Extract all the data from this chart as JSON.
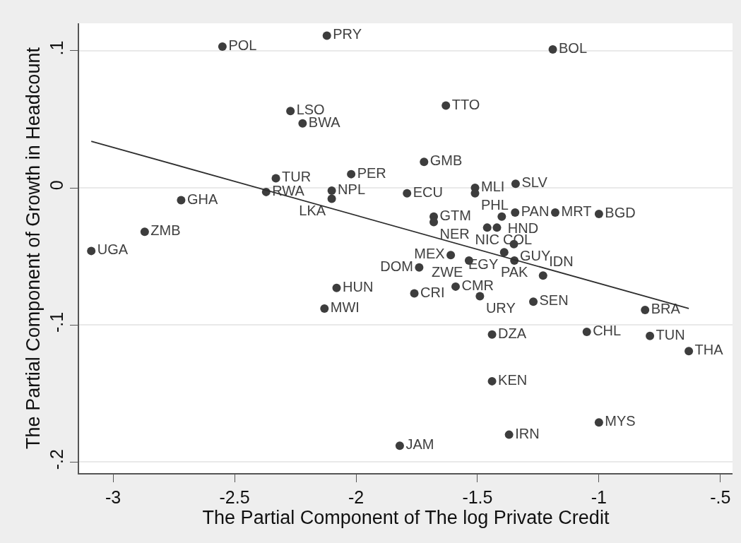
{
  "chart_data": {
    "type": "scatter",
    "xlabel": "The Partial Component of The log Private Credit",
    "ylabel": "The Partial Component of Growth in Headcount",
    "xlim": [
      -3.14,
      -0.45
    ],
    "ylim": [
      -0.208,
      0.12
    ],
    "xticks": [
      -3,
      -2.5,
      -2,
      -1.5,
      -1,
      {
        "value": -0.5,
        "label": "-.5"
      }
    ],
    "yticks": [
      {
        "value": -0.2,
        "label": "-.2"
      },
      {
        "value": -0.1,
        "label": "-.1"
      },
      0,
      {
        "value": 0.1,
        "label": ".1"
      }
    ],
    "grid": "y",
    "marker": "circle",
    "series": [
      {
        "color": "#3d3d3d",
        "x": [
          -2.12,
          -2.55,
          -1.19,
          -2.27,
          -1.63,
          -2.22,
          -1.72,
          -2.02,
          -2.33,
          -1.343,
          -1.51,
          -2.37,
          -2.1,
          -1.79,
          -1.51,
          -2.1,
          -2.72,
          -1.345,
          -1.18,
          -1.0,
          -1.68,
          -1.4,
          -1.68,
          -1.46,
          -1.42,
          -2.87,
          -1.35,
          -3.09,
          -1.39,
          -1.61,
          -1.535,
          -1.348,
          -1.74,
          -1.23,
          -1.59,
          -2.08,
          -1.76,
          -1.49,
          -1.27,
          -2.13,
          -0.81,
          -1.05,
          -1.44,
          -0.79,
          -0.63,
          -1.44,
          -1.0,
          -1.37,
          -1.82
        ],
        "values": [
          0.111,
          0.103,
          0.101,
          0.056,
          0.06,
          0.047,
          0.019,
          0.01,
          0.007,
          0.003,
          0.0,
          -0.003,
          -0.002,
          -0.004,
          -0.004,
          -0.008,
          -0.009,
          -0.018,
          -0.018,
          -0.019,
          -0.021,
          -0.021,
          -0.025,
          -0.029,
          -0.029,
          -0.032,
          -0.041,
          -0.046,
          -0.047,
          -0.049,
          -0.053,
          -0.053,
          -0.058,
          -0.064,
          -0.072,
          -0.073,
          -0.077,
          -0.079,
          -0.083,
          -0.088,
          -0.089,
          -0.105,
          -0.107,
          -0.108,
          -0.119,
          -0.141,
          -0.171,
          -0.18,
          -0.188
        ],
        "value_labels": [
          "PRY",
          "POL",
          "BOL",
          "LSO",
          "TTO",
          "BWA",
          "GMB",
          "PER",
          "TUR",
          "SLV",
          "MLI",
          "RWA",
          "NPL",
          "ECU",
          "PHL",
          "LKA",
          "GHA",
          "PAN",
          "MRT",
          "BGD",
          "GTM",
          "HND",
          "NER",
          "NIC",
          "COL",
          "ZMB",
          "GUY",
          "UGA",
          "EGY",
          "MEX",
          "ZWE",
          "PAK",
          "DOM",
          "IDN",
          "CMR",
          "HUN",
          "CRI",
          "URY",
          "SEN",
          "MWI",
          "BRA",
          "CHL",
          "DZA",
          "TUN",
          "THA",
          "KEN",
          "MYS",
          "IRN",
          "JAM"
        ]
      },
      {
        "type": "line",
        "marker": "none",
        "color": "#2e2e2e",
        "x": [
          -3.09,
          -0.63
        ],
        "values": [
          0.034,
          -0.088
        ]
      }
    ]
  }
}
